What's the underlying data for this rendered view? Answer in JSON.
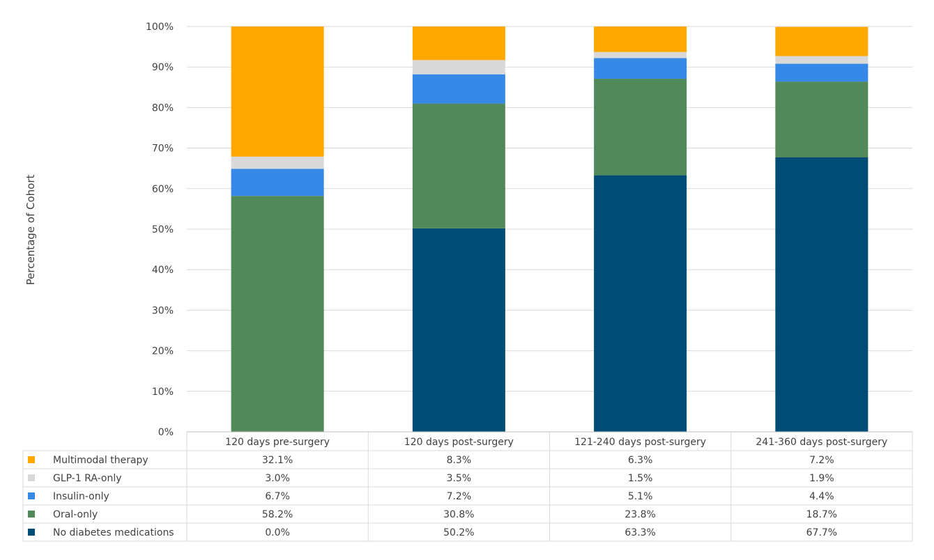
{
  "chart_data": {
    "type": "bar",
    "stacked": true,
    "ylabel": "Percentage of Cohort",
    "ylim": [
      0,
      100
    ],
    "y_ticks": [
      "0%",
      "10%",
      "20%",
      "30%",
      "40%",
      "50%",
      "60%",
      "70%",
      "80%",
      "90%",
      "100%"
    ],
    "grid": true,
    "legend_placement": "data-table-left",
    "categories": [
      "120 days pre-surgery",
      "120 days post-surgery",
      "121-240 days post-surgery",
      "241-360 days post-surgery"
    ],
    "series": [
      {
        "name": "No diabetes medications",
        "color": "#004C74",
        "values": [
          0.0,
          50.2,
          63.3,
          67.7
        ],
        "labels": [
          "0.0%",
          "50.2%",
          "63.3%",
          "67.7%"
        ]
      },
      {
        "name": "Oral-only",
        "color": "#52895A",
        "values": [
          58.2,
          30.8,
          23.8,
          18.7
        ],
        "labels": [
          "58.2%",
          "30.8%",
          "23.8%",
          "18.7%"
        ]
      },
      {
        "name": "Insulin-only",
        "color": "#3789E7",
        "values": [
          6.7,
          7.2,
          5.1,
          4.4
        ],
        "labels": [
          "6.7%",
          "7.2%",
          "5.1%",
          "4.4%"
        ]
      },
      {
        "name": "GLP-1 RA-only",
        "color": "#D9D9D9",
        "values": [
          3.0,
          3.5,
          1.5,
          1.9
        ],
        "labels": [
          "3.0%",
          "3.5%",
          "1.5%",
          "1.9%"
        ]
      },
      {
        "name": "Multimodal therapy",
        "color": "#FFA800",
        "values": [
          32.1,
          8.3,
          6.3,
          7.2
        ],
        "labels": [
          "32.1%",
          "8.3%",
          "6.3%",
          "7.2%"
        ]
      }
    ]
  }
}
